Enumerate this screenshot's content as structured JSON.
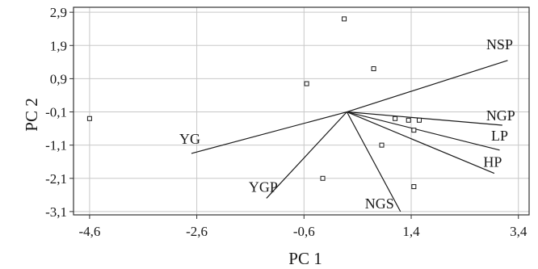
{
  "chart_data": {
    "type": "scatter",
    "title": "",
    "xlabel": "PC 1",
    "ylabel": "PC 2",
    "xlim": [
      -4.9,
      3.6
    ],
    "ylim": [
      -3.2,
      3.05
    ],
    "x_ticks": [
      -4.6,
      -2.6,
      -0.6,
      1.4,
      3.4
    ],
    "x_tick_labels": [
      "-4,6",
      "-2,6",
      "-0,6",
      "1,4",
      "3,4"
    ],
    "y_ticks": [
      2.9,
      1.9,
      0.9,
      -0.1,
      -1.1,
      -2.1,
      -3.1
    ],
    "y_tick_labels": [
      "2,9",
      "1,9",
      "0,9",
      "-0,1",
      "-1,1",
      "-2,1",
      "-3,1"
    ],
    "grid": true,
    "points": [
      {
        "x": -4.6,
        "y": -0.3
      },
      {
        "x": 0.15,
        "y": 2.7
      },
      {
        "x": -0.25,
        "y": -2.1
      },
      {
        "x": 0.7,
        "y": 1.2
      },
      {
        "x": -0.55,
        "y": 0.75
      },
      {
        "x": 1.1,
        "y": -0.3
      },
      {
        "x": 1.35,
        "y": -0.35
      },
      {
        "x": 1.55,
        "y": -0.35
      },
      {
        "x": 1.45,
        "y": -0.65
      },
      {
        "x": 0.85,
        "y": -1.1
      },
      {
        "x": 1.45,
        "y": -2.35
      }
    ],
    "vector_origin": {
      "x": 0.2,
      "y": -0.1
    },
    "vectors": [
      {
        "name": "NSP",
        "x": 3.2,
        "y": 1.45
      },
      {
        "name": "NGP",
        "x": 3.1,
        "y": -0.5
      },
      {
        "name": "LP",
        "x": 3.05,
        "y": -1.25
      },
      {
        "name": "HP",
        "x": 2.95,
        "y": -1.95
      },
      {
        "name": "NGS",
        "x": 1.2,
        "y": -3.1
      },
      {
        "name": "YGP",
        "x": -1.3,
        "y": -2.7
      },
      {
        "name": "YG",
        "x": -2.7,
        "y": -1.35
      }
    ]
  }
}
